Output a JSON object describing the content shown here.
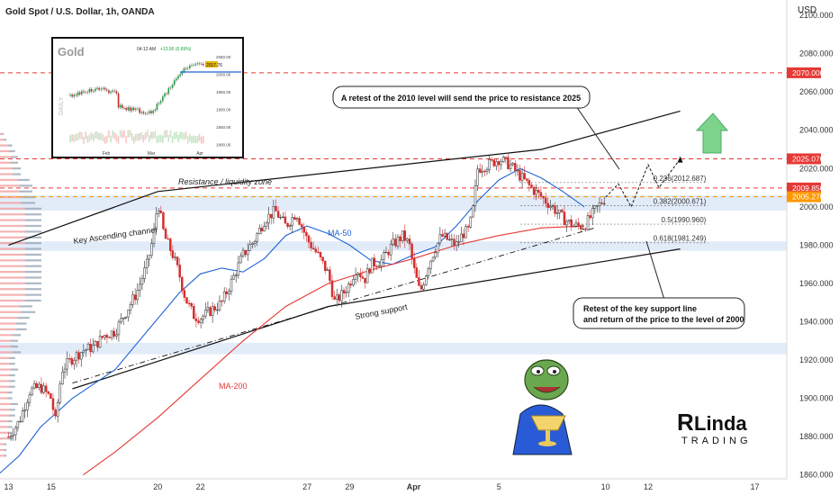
{
  "header": {
    "title": "Gold Spot / U.S. Dollar, 1h, OANDA",
    "currency": "USD"
  },
  "chart_data": {
    "type": "candlestick",
    "y_range": [
      1858,
      2108
    ],
    "y_ticks": [
      1860,
      1880,
      1900,
      1920,
      1940,
      1960,
      1980,
      2000,
      2020,
      2040,
      2060,
      2080,
      2100
    ],
    "y_tick_labels": [
      "1860.000",
      "1880.000",
      "1900.000",
      "1920.000",
      "1940.000",
      "1960.000",
      "1980.000",
      "2000.000",
      "2020.000",
      "2040.000",
      "2060.000",
      "2080.000",
      "2100.000"
    ],
    "x_ticks": [
      {
        "label": "13",
        "day": 13
      },
      {
        "label": "15",
        "day": 15
      },
      {
        "label": "20",
        "day": 20
      },
      {
        "label": "22",
        "day": 22
      },
      {
        "label": "27",
        "day": 27
      },
      {
        "label": "29",
        "day": 29
      },
      {
        "label": "Apr",
        "day": 32
      },
      {
        "label": "5",
        "day": 36
      },
      {
        "label": "10",
        "day": 41
      },
      {
        "label": "12",
        "day": 43
      },
      {
        "label": "17",
        "day": 48
      }
    ],
    "price_path": [
      {
        "day": 13.0,
        "price": 1880
      },
      {
        "day": 13.5,
        "price": 1888
      },
      {
        "day": 14.0,
        "price": 1904
      },
      {
        "day": 14.5,
        "price": 1906
      },
      {
        "day": 15.0,
        "price": 1900
      },
      {
        "day": 15.2,
        "price": 1888
      },
      {
        "day": 15.5,
        "price": 1915
      },
      {
        "day": 16.0,
        "price": 1921
      },
      {
        "day": 16.5,
        "price": 1925
      },
      {
        "day": 17.0,
        "price": 1927
      },
      {
        "day": 17.5,
        "price": 1933
      },
      {
        "day": 18.0,
        "price": 1935
      },
      {
        "day": 18.5,
        "price": 1945
      },
      {
        "day": 19.0,
        "price": 1955
      },
      {
        "day": 19.5,
        "price": 1970
      },
      {
        "day": 19.8,
        "price": 1985
      },
      {
        "day": 20.0,
        "price": 2003
      },
      {
        "day": 20.3,
        "price": 1985
      },
      {
        "day": 20.7,
        "price": 1975
      },
      {
        "day": 21.0,
        "price": 1965
      },
      {
        "day": 21.3,
        "price": 1952
      },
      {
        "day": 21.7,
        "price": 1943
      },
      {
        "day": 22.0,
        "price": 1942
      },
      {
        "day": 22.5,
        "price": 1946
      },
      {
        "day": 23.0,
        "price": 1950
      },
      {
        "day": 23.5,
        "price": 1962
      },
      {
        "day": 24.0,
        "price": 1975
      },
      {
        "day": 24.5,
        "price": 1982
      },
      {
        "day": 25.0,
        "price": 1993
      },
      {
        "day": 25.5,
        "price": 1998
      },
      {
        "day": 26.0,
        "price": 1990
      },
      {
        "day": 26.5,
        "price": 1997
      },
      {
        "day": 27.0,
        "price": 1983
      },
      {
        "day": 27.5,
        "price": 1975
      },
      {
        "day": 28.0,
        "price": 1965
      },
      {
        "day": 28.3,
        "price": 1950
      },
      {
        "day": 28.7,
        "price": 1955
      },
      {
        "day": 29.0,
        "price": 1960
      },
      {
        "day": 29.3,
        "price": 1968
      },
      {
        "day": 29.7,
        "price": 1962
      },
      {
        "day": 30.0,
        "price": 1970
      },
      {
        "day": 30.5,
        "price": 1972
      },
      {
        "day": 31.0,
        "price": 1980
      },
      {
        "day": 31.5,
        "price": 1985
      },
      {
        "day": 31.8,
        "price": 1980
      },
      {
        "day": 32.0,
        "price": 1968
      },
      {
        "day": 32.3,
        "price": 1955
      },
      {
        "day": 32.7,
        "price": 1970
      },
      {
        "day": 33.0,
        "price": 1978
      },
      {
        "day": 33.3,
        "price": 1985
      },
      {
        "day": 33.7,
        "price": 1982
      },
      {
        "day": 34.0,
        "price": 1980
      },
      {
        "day": 34.3,
        "price": 1986
      },
      {
        "day": 34.6,
        "price": 1988
      },
      {
        "day": 34.8,
        "price": 2000
      },
      {
        "day": 35.0,
        "price": 2020
      },
      {
        "day": 35.5,
        "price": 2022
      },
      {
        "day": 36.0,
        "price": 2025
      },
      {
        "day": 36.5,
        "price": 2022
      },
      {
        "day": 37.0,
        "price": 2016
      },
      {
        "day": 37.5,
        "price": 2010
      },
      {
        "day": 38.0,
        "price": 2005
      },
      {
        "day": 38.5,
        "price": 2000
      },
      {
        "day": 39.0,
        "price": 1994
      },
      {
        "day": 39.5,
        "price": 1990
      },
      {
        "day": 40.0,
        "price": 1990
      },
      {
        "day": 40.5,
        "price": 1998
      },
      {
        "day": 41.0,
        "price": 2005
      }
    ],
    "series": [
      {
        "name": "MA-50",
        "color": "#1e63d6",
        "points": [
          {
            "day": 12.5,
            "price": 1860
          },
          {
            "day": 13.5,
            "price": 1870
          },
          {
            "day": 14.5,
            "price": 1885
          },
          {
            "day": 16,
            "price": 1900
          },
          {
            "day": 18,
            "price": 1915
          },
          {
            "day": 19.5,
            "price": 1935
          },
          {
            "day": 21,
            "price": 1955
          },
          {
            "day": 22,
            "price": 1965
          },
          {
            "day": 23,
            "price": 1968
          },
          {
            "day": 24,
            "price": 1966
          },
          {
            "day": 25,
            "price": 1973
          },
          {
            "day": 26,
            "price": 1985
          },
          {
            "day": 27,
            "price": 1990
          },
          {
            "day": 28,
            "price": 1986
          },
          {
            "day": 29,
            "price": 1980
          },
          {
            "day": 30,
            "price": 1972
          },
          {
            "day": 31,
            "price": 1970
          },
          {
            "day": 32,
            "price": 1975
          },
          {
            "day": 33,
            "price": 1979
          },
          {
            "day": 34,
            "price": 1990
          },
          {
            "day": 35,
            "price": 2003
          },
          {
            "day": 36,
            "price": 2014
          },
          {
            "day": 37,
            "price": 2020
          },
          {
            "day": 38,
            "price": 2015
          },
          {
            "day": 39,
            "price": 2008
          },
          {
            "day": 40,
            "price": 2000
          }
        ]
      },
      {
        "name": "MA-200",
        "color": "#e53935",
        "points": [
          {
            "day": 16.5,
            "price": 1860
          },
          {
            "day": 18,
            "price": 1872
          },
          {
            "day": 20,
            "price": 1890
          },
          {
            "day": 22,
            "price": 1910
          },
          {
            "day": 24,
            "price": 1930
          },
          {
            "day": 26,
            "price": 1948
          },
          {
            "day": 28,
            "price": 1960
          },
          {
            "day": 30,
            "price": 1967
          },
          {
            "day": 32,
            "price": 1973
          },
          {
            "day": 34,
            "price": 1980
          },
          {
            "day": 36,
            "price": 1985
          },
          {
            "day": 38,
            "price": 1989
          },
          {
            "day": 40,
            "price": 1990
          }
        ]
      }
    ],
    "channel": {
      "upper": [
        {
          "day": 13,
          "price": 1980
        },
        {
          "day": 20,
          "price": 2008
        },
        {
          "day": 38,
          "price": 2030
        },
        {
          "day": 44.5,
          "price": 2050
        }
      ],
      "lower": [
        {
          "day": 16,
          "price": 1905
        },
        {
          "day": 28,
          "price": 1948
        },
        {
          "day": 44.5,
          "price": 1978
        }
      ],
      "dashed": [
        {
          "day": 16,
          "price": 1908
        },
        {
          "day": 40.5,
          "price": 1989
        }
      ]
    },
    "horizontal_levels": [
      {
        "price": 2070.0,
        "label": "2070.000",
        "color": "#e53935"
      },
      {
        "price": 2025.07,
        "label": "2025.070",
        "color": "#e53935"
      },
      {
        "price": 2009.85,
        "label": "2009.850",
        "color": "#e53935"
      },
      {
        "price": 2005.27,
        "label": "2005.270",
        "color": "#ff9800"
      }
    ],
    "fib_levels": [
      {
        "price": 2012.687,
        "label": "0.236(2012.687)"
      },
      {
        "price": 2000.671,
        "label": "0.382(2000.671)"
      },
      {
        "price": 1990.96,
        "label": "0.5(1990.960)"
      },
      {
        "price": 1981.249,
        "label": "0.618(1981.249)"
      }
    ],
    "zones": [
      {
        "from": 1998,
        "to": 2006,
        "color": "#cfe0f5"
      },
      {
        "from": 1977,
        "to": 1982,
        "color": "#cfe0f5"
      },
      {
        "from": 1923,
        "to": 1929,
        "color": "#cfe0f5"
      }
    ],
    "projection": [
      {
        "day": 41,
        "price": 2005
      },
      {
        "day": 41.6,
        "price": 2012
      },
      {
        "day": 42.2,
        "price": 2000
      },
      {
        "day": 43,
        "price": 2022
      },
      {
        "day": 43.5,
        "price": 2010
      },
      {
        "day": 44.5,
        "price": 2025
      }
    ],
    "annotations": {
      "resistance_zone": "Resistance / liquidity zone",
      "key_channel": "Key Ascending channel",
      "strong_support": "Strong support",
      "ma50": "MA-50",
      "ma200": "MA-200",
      "retest_2010": "A retest of the 2010 level will send the price to resistance 2025",
      "retest_support_line1": "Retest of the key support line",
      "retest_support_line2": "and return of the price to the level of 2000"
    }
  },
  "inset": {
    "title": "Gold",
    "time": "04:12 AM",
    "change": "+13.90 (0.69%)",
    "price": "2017.76",
    "side_label": "DAILY",
    "y_labels": [
      "2050.00",
      "2000.00",
      "1950.00",
      "1900.00",
      "1850.00",
      "1800.00"
    ],
    "x_labels": [
      "Feb",
      "Mar",
      "Apr"
    ]
  },
  "watermark": {
    "line1": "Linda",
    "line2": "TRADING"
  }
}
